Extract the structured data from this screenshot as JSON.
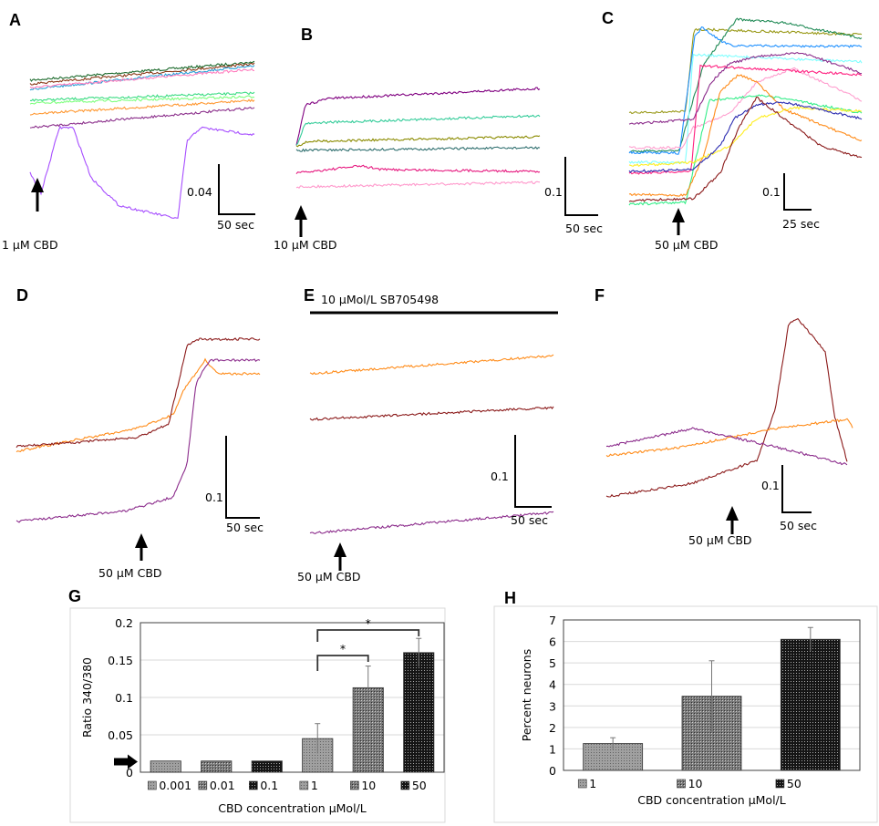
{
  "panels": {
    "A": {
      "label": "A",
      "stimulus": "1 µM CBD",
      "scale_y": "0.04",
      "scale_x": "50 sec"
    },
    "B": {
      "label": "B",
      "stimulus": "10 µM CBD",
      "scale_y": "0.1",
      "scale_x": "50 sec"
    },
    "C": {
      "label": "C",
      "stimulus": "50 µM CBD",
      "scale_y": "0.1",
      "scale_x": "25 sec"
    },
    "D": {
      "label": "D",
      "stimulus": "50 µM CBD",
      "scale_y": "0.1",
      "scale_x": "50 sec"
    },
    "E": {
      "label": "E",
      "stimulus": "50 µM CBD",
      "scale_y": "0.1",
      "scale_x": "50 sec",
      "treatment": "10 µMol/L SB705498"
    },
    "F": {
      "label": "F",
      "stimulus": "50 µM CBD",
      "scale_y": "0.1",
      "scale_x": "50 sec"
    },
    "G": {
      "label": "G"
    },
    "H": {
      "label": "H"
    }
  },
  "trace_colors": {
    "A": [
      "#1e6b2e",
      "#8b3a1a",
      "#2a9fd6",
      "#ff7fbf",
      "#3ddc84",
      "#7fff7f",
      "#ff9933",
      "#8b2f8b",
      "#a64dff"
    ],
    "B": [
      "#800080",
      "#33cc99",
      "#8b8b00",
      "#2f6f6f",
      "#e6197f",
      "#ff99cc"
    ],
    "C": [
      "#9a9a1a",
      "#228b57",
      "#1e90ff",
      "#7fffff",
      "#ff9fcf",
      "#ff1f7f",
      "#8b2b8b",
      "#33ee88",
      "#ff8c1a",
      "#ffee22",
      "#2b2bb0",
      "#8b1a1a"
    ],
    "D": [
      "#ff8c1a",
      "#8b1a1a",
      "#8b2b8b"
    ],
    "E": [
      "#ff8c1a",
      "#8b1a1a",
      "#8b2b8b"
    ],
    "F": [
      "#8b1a1a",
      "#ff8c1a",
      "#8b2b8b"
    ]
  },
  "chart_data": [
    {
      "panel": "G",
      "type": "bar",
      "ylabel": "Ratio 340/380",
      "xlabel": "CBD concentration µMol/L",
      "categories": [
        "0.001",
        "0.01",
        "0.1",
        "1",
        "10",
        "50"
      ],
      "values": [
        0.015,
        0.015,
        0.015,
        0.045,
        0.113,
        0.16
      ],
      "errors": [
        0,
        0,
        0,
        0.02,
        0.029,
        0.019
      ],
      "ylim": [
        0,
        0.2
      ],
      "yticks": [
        "0",
        "0.05",
        "0.1",
        "0.15",
        "0.2"
      ],
      "grid": true,
      "legend_placement": "bottom",
      "annotations": [
        {
          "from": "1",
          "to": "10",
          "text": "*"
        },
        {
          "from": "1",
          "to": "50",
          "text": "*"
        }
      ],
      "baseline_arrow_value": 0.014
    },
    {
      "panel": "H",
      "type": "bar",
      "ylabel": "Percent neurons",
      "xlabel": "CBD concentration µMol/L",
      "categories": [
        "1",
        "10",
        "50"
      ],
      "values": [
        1.25,
        3.45,
        6.1
      ],
      "errors": [
        0.27,
        1.65,
        0.55
      ],
      "ylim": [
        0,
        7
      ],
      "yticks": [
        "0",
        "1",
        "2",
        "3",
        "4",
        "5",
        "6",
        "7"
      ],
      "grid": true,
      "legend_placement": "bottom"
    }
  ]
}
